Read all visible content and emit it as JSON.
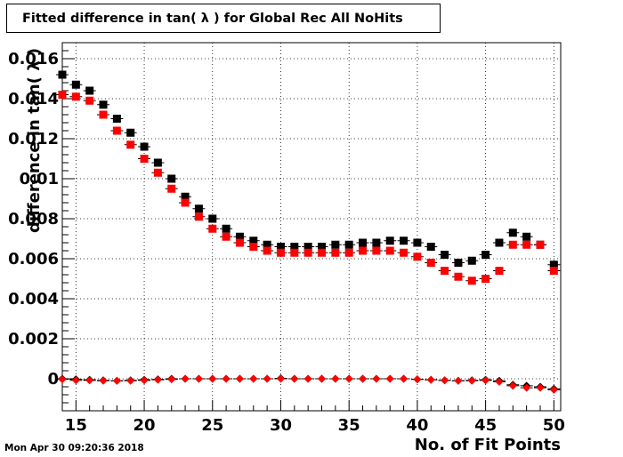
{
  "chart_data": {
    "type": "scatter",
    "title": "Fitted difference in tan( λ ) for Global Rec All NoHits",
    "xlabel": "No. of Fit Points",
    "ylabel": "difference in tan( λ )",
    "xlim": [
      14,
      50.5
    ],
    "ylim": [
      -0.0016,
      0.0168
    ],
    "xticks": [
      15,
      20,
      25,
      30,
      35,
      40,
      45,
      50
    ],
    "yticks": [
      0,
      0.002,
      0.004,
      0.006,
      0.008,
      0.01,
      0.012,
      0.014,
      0.016
    ],
    "ytick_labels": [
      "0",
      "0.002",
      "0.004",
      "0.006",
      "0.008",
      "0.01",
      "0.012",
      "0.014",
      "0.016"
    ],
    "grid": true,
    "x": [
      14,
      15,
      16,
      17,
      18,
      19,
      20,
      21,
      22,
      23,
      24,
      25,
      26,
      27,
      28,
      29,
      30,
      31,
      32,
      33,
      34,
      35,
      36,
      37,
      38,
      39,
      40,
      41,
      42,
      43,
      44,
      45,
      46,
      47,
      48,
      49,
      50
    ],
    "series": [
      {
        "color": "#000000",
        "marker": "square",
        "values": [
          0.0152,
          0.0147,
          0.0144,
          0.0137,
          0.013,
          0.0123,
          0.0116,
          0.0108,
          0.01,
          0.0091,
          0.0085,
          0.008,
          0.0075,
          0.0071,
          0.0069,
          0.0067,
          0.0066,
          0.0066,
          0.0066,
          0.0066,
          0.0067,
          0.0067,
          0.0068,
          0.0068,
          0.0069,
          0.0069,
          0.0068,
          0.0066,
          0.0062,
          0.0058,
          0.0059,
          0.0062,
          0.0068,
          0.0073,
          0.0071,
          0.0067,
          0.0057
        ]
      },
      {
        "color": "#ff0000",
        "marker": "square",
        "values": [
          0.0142,
          0.0141,
          0.0139,
          0.0132,
          0.0124,
          0.0117,
          0.011,
          0.0103,
          0.0095,
          0.0088,
          0.0081,
          0.0075,
          0.0071,
          0.0068,
          0.0066,
          0.0064,
          0.0063,
          0.0063,
          0.0063,
          0.0063,
          0.0063,
          0.0063,
          0.0064,
          0.0064,
          0.0064,
          0.0063,
          0.0061,
          0.0058,
          0.0054,
          0.0051,
          0.0049,
          0.005,
          0.0054,
          0.0067,
          0.0067,
          0.0067,
          0.0054
        ]
      },
      {
        "color": "#000000",
        "marker": "diamond",
        "values": [
          0.0,
          -3e-05,
          -5e-05,
          -8e-05,
          -0.0001,
          -8e-05,
          -5e-05,
          -3e-05,
          0.0,
          0.0,
          0.0,
          0.0,
          0.0,
          0.0,
          0.0,
          0.0,
          2e-05,
          0.0,
          0.0,
          0.0,
          0.0,
          0.0,
          0.0,
          0.0,
          0.0,
          0.0,
          -3e-05,
          -5e-05,
          -8e-05,
          -0.0001,
          -8e-05,
          -5e-05,
          -0.0001,
          -0.0003,
          -0.00035,
          -0.0004,
          -0.0005
        ]
      },
      {
        "color": "#ff0000",
        "marker": "diamond",
        "values": [
          -3e-05,
          -8e-05,
          -8e-05,
          -0.0001,
          -0.0001,
          -0.0001,
          -8e-05,
          -5e-05,
          -3e-05,
          0.0,
          0.0,
          0.0,
          0.0,
          0.0,
          0.0,
          0.0,
          0.0,
          0.0,
          0.0,
          0.0,
          0.0,
          0.0,
          0.0,
          0.0,
          0.0,
          0.0,
          -3e-05,
          -5e-05,
          -8e-05,
          -0.0001,
          -0.0001,
          -8e-05,
          -0.00015,
          -0.00035,
          -0.00045,
          -0.00045,
          -0.00055
        ]
      }
    ]
  },
  "datestamp": "Mon Apr 30 09:20:36 2018"
}
